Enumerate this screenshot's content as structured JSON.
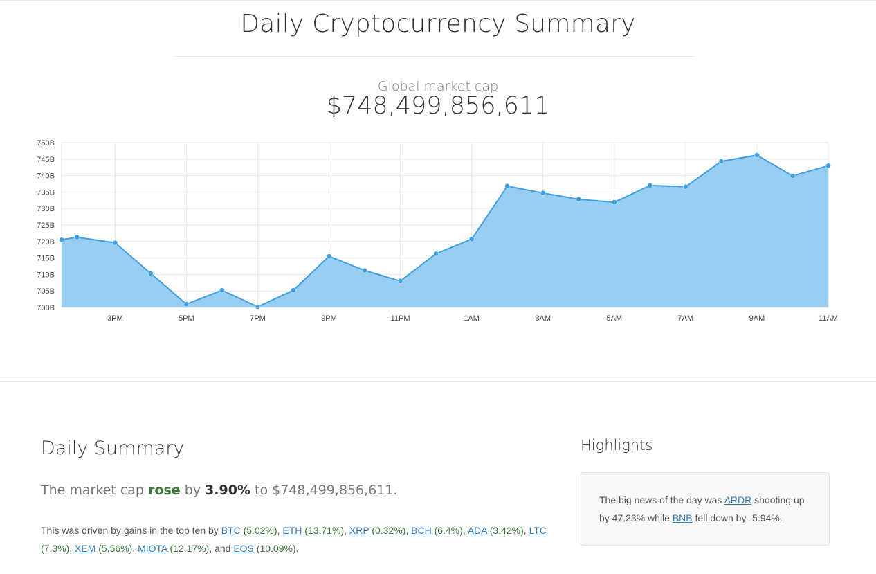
{
  "header": {
    "title": "Daily Cryptocurrency Summary",
    "cap_label": "Global market cap",
    "cap_value": "$748,499,856,611"
  },
  "colors": {
    "area_fill": "#99cef3",
    "line": "#3e9fde",
    "point": "#3e9fde",
    "gain_green": "#3c763d",
    "link": "#337ab7"
  },
  "chart_data": {
    "type": "area",
    "title": "",
    "xlabel": "",
    "ylabel": "",
    "ylim": [
      700,
      750
    ],
    "y_unit": "B",
    "y_ticks": [
      "700B",
      "705B",
      "710B",
      "715B",
      "720B",
      "725B",
      "730B",
      "735B",
      "740B",
      "745B",
      "750B"
    ],
    "x_tick_labels": [
      "3PM",
      "5PM",
      "7PM",
      "9PM",
      "11PM",
      "1AM",
      "3AM",
      "5AM",
      "7AM",
      "9AM",
      "11AM"
    ],
    "x_tick_index": [
      1.5,
      3.5,
      5.5,
      7.5,
      9.5,
      11.5,
      13.5,
      15.5,
      17.5,
      19.5,
      21.5
    ],
    "grid": true,
    "x": [
      0,
      0.43,
      1.5,
      2.5,
      3.5,
      4.5,
      5.5,
      6.5,
      7.5,
      8.5,
      9.5,
      10.5,
      11.5,
      12.5,
      13.5,
      14.5,
      15.5,
      16.5,
      17.5,
      18.5,
      19.5,
      20.5,
      21.5
    ],
    "series": [
      {
        "values": [
          720.5,
          721.3,
          719.6,
          710.3,
          701.0,
          705.2,
          700.2,
          705.2,
          715.5,
          711.2,
          708.0,
          716.3,
          720.7,
          736.8,
          734.7,
          732.8,
          731.9,
          737.0,
          736.6,
          744.3,
          746.2,
          739.9,
          743.0
        ]
      }
    ]
  },
  "daily_summary": {
    "heading": "Daily Summary",
    "pre": "The market cap",
    "verb": "rose",
    "by": "by",
    "pct": "3.90%",
    "to": "to $748,499,856,611.",
    "driven_intro": "This was driven by gains in the top ten by",
    "coins": [
      {
        "ticker": "BTC",
        "change": "(5.02%)"
      },
      {
        "ticker": "ETH",
        "change": "(13.71%)"
      },
      {
        "ticker": "XRP",
        "change": "(0.32%)"
      },
      {
        "ticker": "BCH",
        "change": "(6.4%)"
      },
      {
        "ticker": "ADA",
        "change": "(3.42%)"
      },
      {
        "ticker": "LTC",
        "change": "(7.3%)"
      },
      {
        "ticker": "XEM",
        "change": "(5.56%)"
      },
      {
        "ticker": "MIOTA",
        "change": "(12.17%)"
      },
      {
        "ticker": "EOS",
        "change": "(10.09%)"
      }
    ],
    "and_word": "and"
  },
  "highlights": {
    "heading": "Highlights",
    "text_1": "The big news of the day was",
    "up_coin": "ARDR",
    "text_2": "shooting up by 47.23% while",
    "down_coin": "BNB",
    "text_3": "fell down by -5.94%."
  }
}
